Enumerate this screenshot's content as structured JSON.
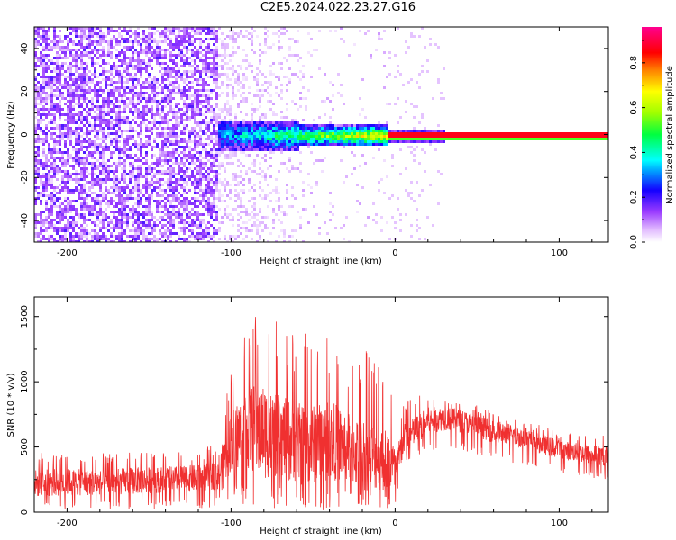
{
  "window": {
    "title": "C2E5.2024.022.23.27.G16"
  },
  "chart_data": [
    {
      "type": "heatmap",
      "xlabel": "Height of straight line (km)",
      "ylabel": "Frequency (Hz)",
      "xlim": [
        -220,
        130
      ],
      "ylim": [
        -50,
        50
      ],
      "xticks": [
        -200,
        -100,
        0,
        100
      ],
      "yticks": [
        -40,
        -20,
        0,
        20,
        40
      ],
      "grid": false,
      "description_of_data": [
        {
          "x_range": [
            -220,
            -108
          ],
          "frequency_range": [
            -50,
            50
          ],
          "amplitude": "noise ~0.1-0.2"
        },
        {
          "x_range": [
            -108,
            -5
          ],
          "frequency_range": [
            -6,
            6
          ],
          "amplitude": "0.2-0.6 increasing toward 0"
        },
        {
          "x_range": [
            -5,
            130
          ],
          "frequency_range": [
            -1.5,
            1.5
          ],
          "amplitude": "~0.9 constant line at 0 Hz"
        }
      ],
      "colorbar": {
        "label": "Normalized spectral amplitude",
        "ticks": [
          0.0,
          0.2,
          0.4,
          0.6,
          0.8
        ],
        "range": [
          0,
          0.96
        ],
        "colors": [
          "#ffffff",
          "#d08cff",
          "#8000ff",
          "#0000ff",
          "#00ffff",
          "#00ff00",
          "#ffff00",
          "#ff8000",
          "#ff0000",
          "#ff00a0"
        ]
      }
    },
    {
      "type": "line",
      "xlabel": "Height of straight line (km)",
      "ylabel": "SNR (10 * v/v)",
      "xlim": [
        -220,
        130
      ],
      "ylim": [
        0,
        1650
      ],
      "xticks": [
        -200,
        -100,
        0,
        100
      ],
      "yticks": [
        0,
        500,
        1000,
        1500
      ],
      "grid": false,
      "series": [
        {
          "color": "#f03030",
          "envelope_x": [
            -220,
            -200,
            -180,
            -160,
            -140,
            -120,
            -110,
            -105,
            -100,
            -90,
            -80,
            -70,
            -60,
            -50,
            -40,
            -30,
            -20,
            -10,
            -2,
            0,
            5,
            10,
            20,
            30,
            40,
            50,
            60,
            70,
            80,
            90,
            100,
            110,
            120,
            130
          ],
          "envelope_mean": [
            220,
            230,
            225,
            240,
            250,
            260,
            280,
            350,
            550,
            650,
            620,
            580,
            520,
            520,
            560,
            500,
            450,
            420,
            380,
            300,
            550,
            600,
            700,
            720,
            700,
            660,
            620,
            600,
            560,
            520,
            480,
            460,
            440,
            430
          ],
          "envelope_max": [
            500,
            480,
            450,
            480,
            460,
            480,
            520,
            850,
            1100,
            1500,
            1650,
            1400,
            1450,
            1350,
            1400,
            1200,
            1300,
            1150,
            1050,
            800,
            850,
            900,
            920,
            900,
            880,
            820,
            780,
            740,
            700,
            660,
            620,
            600,
            600,
            600
          ],
          "envelope_min": [
            20,
            20,
            20,
            20,
            20,
            20,
            30,
            50,
            80,
            50,
            20,
            20,
            10,
            10,
            10,
            10,
            10,
            20,
            20,
            10,
            300,
            400,
            450,
            500,
            480,
            440,
            400,
            380,
            350,
            330,
            300,
            280,
            260,
            250
          ]
        }
      ]
    }
  ]
}
